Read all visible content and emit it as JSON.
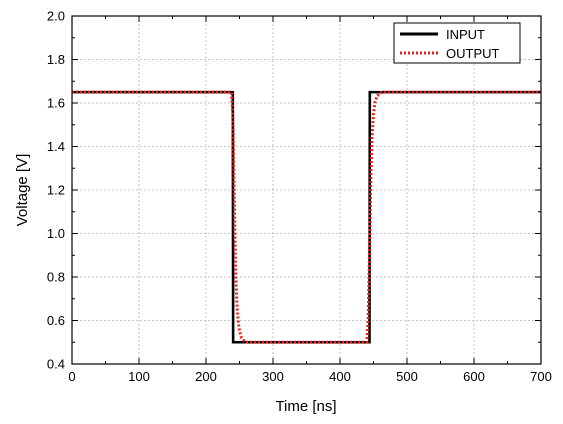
{
  "chart_data": {
    "type": "line",
    "title": "",
    "xlabel": "Time [ns]",
    "ylabel": "Voltage [V]",
    "xlim": [
      0,
      700
    ],
    "ylim": [
      0.4,
      2.0
    ],
    "xticks": [
      0,
      100,
      200,
      300,
      400,
      500,
      600,
      700
    ],
    "yticks": [
      0.4,
      0.6,
      0.8,
      1.0,
      1.2,
      1.4,
      1.6,
      1.8,
      2.0
    ],
    "xtick_labels": [
      "0",
      "100",
      "200",
      "300",
      "400",
      "500",
      "600",
      "700"
    ],
    "ytick_labels": [
      "0.4",
      "0.6",
      "0.8",
      "1.0",
      "1.2",
      "1.4",
      "1.6",
      "1.8",
      "2.0"
    ],
    "grid": true,
    "legend_position": "top-right",
    "series": [
      {
        "name": "INPUT",
        "color": "#000000",
        "style": "solid",
        "x": [
          0,
          240,
          240.5,
          444,
          444.5,
          700
        ],
        "y": [
          1.65,
          1.65,
          0.5,
          0.5,
          1.65,
          1.65
        ]
      },
      {
        "name": "OUTPUT",
        "color": "#e8201a",
        "style": "dotted",
        "x": [
          0,
          238,
          240,
          242,
          244,
          246,
          248,
          250,
          253,
          257,
          262,
          440,
          442,
          444,
          446,
          448,
          450,
          452,
          455,
          459,
          464,
          700
        ],
        "y": [
          1.65,
          1.65,
          1.55,
          1.2,
          0.85,
          0.68,
          0.6,
          0.55,
          0.52,
          0.505,
          0.5,
          0.5,
          0.6,
          0.9,
          1.25,
          1.45,
          1.55,
          1.6,
          1.63,
          1.645,
          1.65,
          1.65
        ]
      }
    ]
  }
}
